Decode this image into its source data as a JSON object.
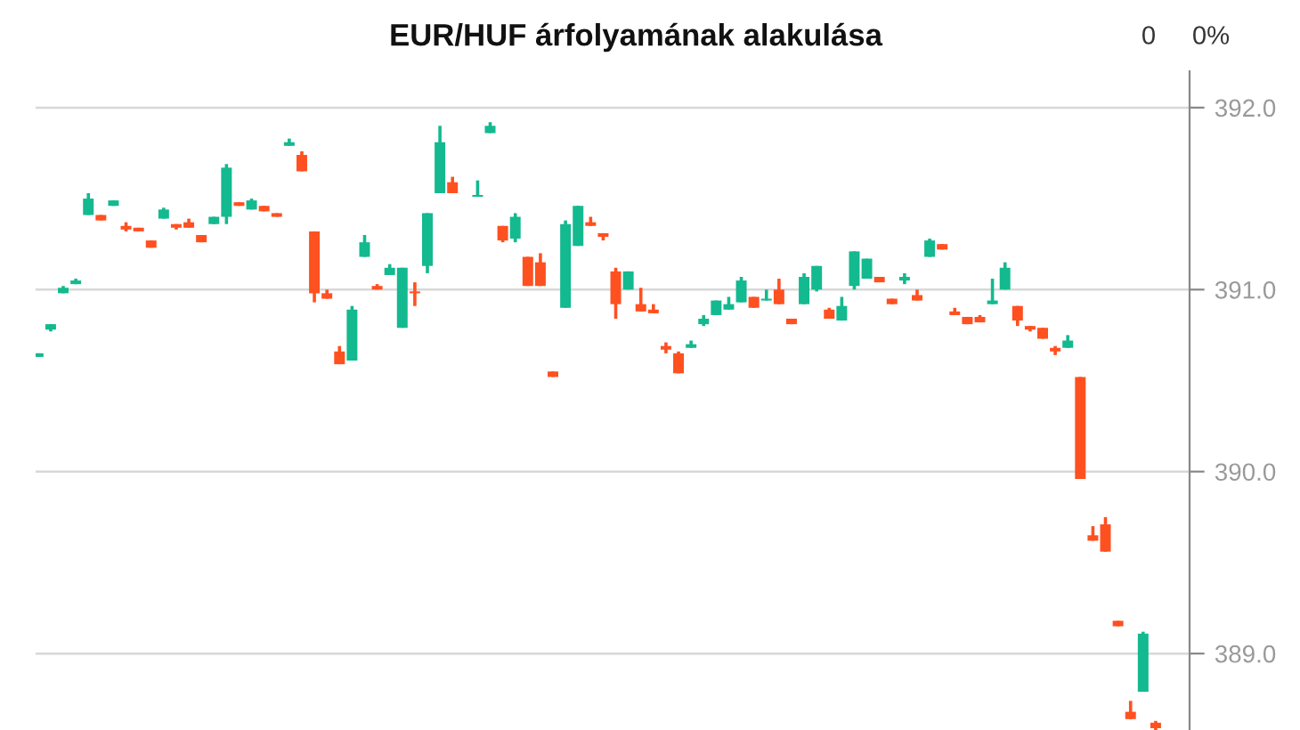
{
  "chart_data": {
    "type": "candlestick",
    "title": "EUR/HUF árfolyamának alakulása",
    "annotations": [
      "0",
      "0%"
    ],
    "categories": [
      null,
      null,
      null,
      null,
      null,
      null,
      null,
      null,
      null,
      null,
      null,
      null,
      null,
      null,
      null,
      null,
      null,
      null,
      null,
      null,
      null,
      null,
      null,
      null,
      null,
      null,
      null,
      null,
      null,
      null,
      null,
      null,
      null,
      null,
      null,
      null,
      null,
      null,
      null,
      null,
      null,
      null,
      null,
      null,
      null,
      null,
      null,
      null,
      null,
      null,
      null,
      null,
      null,
      null,
      null,
      null,
      null,
      null,
      null,
      null,
      null,
      null,
      null,
      null,
      null,
      null,
      null,
      null,
      null,
      null,
      null,
      null,
      null,
      null,
      null,
      null,
      null,
      null,
      null,
      null,
      null,
      null,
      null,
      null,
      null,
      null,
      null,
      null,
      null,
      null
    ],
    "ohlc": [
      [
        390.63,
        390.65,
        390.63,
        390.65
      ],
      [
        390.78,
        390.81,
        390.77,
        390.81
      ],
      [
        390.98,
        391.02,
        390.98,
        391.01
      ],
      [
        391.03,
        391.06,
        391.03,
        391.05
      ],
      [
        391.41,
        391.53,
        391.41,
        391.5
      ],
      [
        391.41,
        391.41,
        391.38,
        391.38
      ],
      [
        391.46,
        391.49,
        391.46,
        391.49
      ],
      [
        391.35,
        391.37,
        391.32,
        391.33
      ],
      [
        391.34,
        391.34,
        391.32,
        391.32
      ],
      [
        391.27,
        391.27,
        391.23,
        391.23
      ],
      [
        391.39,
        391.45,
        391.39,
        391.44
      ],
      [
        391.36,
        391.36,
        391.33,
        391.34
      ],
      [
        391.37,
        391.39,
        391.34,
        391.34
      ],
      [
        391.3,
        391.3,
        391.26,
        391.26
      ],
      [
        391.36,
        391.4,
        391.36,
        391.4
      ],
      [
        391.4,
        391.69,
        391.36,
        391.67
      ],
      [
        391.48,
        391.48,
        391.46,
        391.46
      ],
      [
        391.44,
        391.5,
        391.44,
        391.49
      ],
      [
        391.46,
        391.46,
        391.43,
        391.43
      ],
      [
        391.42,
        391.42,
        391.4,
        391.4
      ],
      [
        391.79,
        391.83,
        391.79,
        391.81
      ],
      [
        391.74,
        391.76,
        391.65,
        391.65
      ],
      [
        391.32,
        391.32,
        390.93,
        390.98
      ],
      [
        390.98,
        391.0,
        390.95,
        390.95
      ],
      [
        390.66,
        390.69,
        390.59,
        390.59
      ],
      [
        390.61,
        390.91,
        390.61,
        390.89
      ],
      [
        391.18,
        391.3,
        391.18,
        391.26
      ],
      [
        391.02,
        391.03,
        391.0,
        391.0
      ],
      [
        391.08,
        391.14,
        391.08,
        391.12
      ],
      [
        390.79,
        391.12,
        390.79,
        391.12
      ],
      [
        390.99,
        391.04,
        390.91,
        390.98
      ],
      [
        391.13,
        391.42,
        391.09,
        391.42
      ],
      [
        391.53,
        391.9,
        391.53,
        391.81
      ],
      [
        391.59,
        391.62,
        391.53,
        391.53
      ],
      null,
      [
        391.51,
        391.6,
        391.51,
        391.52
      ],
      [
        391.86,
        391.92,
        391.86,
        391.9
      ],
      [
        391.35,
        391.35,
        391.26,
        391.27
      ],
      [
        391.28,
        391.42,
        391.26,
        391.4
      ],
      [
        391.18,
        391.18,
        391.02,
        391.02
      ],
      [
        391.15,
        391.2,
        391.02,
        391.02
      ],
      [
        390.55,
        390.55,
        390.52,
        390.52
      ],
      [
        390.9,
        391.38,
        390.9,
        391.36
      ],
      [
        391.24,
        391.46,
        391.24,
        391.46
      ],
      [
        391.37,
        391.4,
        391.35,
        391.35
      ],
      [
        391.31,
        391.31,
        391.27,
        391.29
      ],
      [
        391.1,
        391.12,
        390.84,
        390.92
      ],
      [
        391.0,
        391.1,
        391.0,
        391.1
      ],
      [
        390.92,
        391.01,
        390.88,
        390.88
      ],
      [
        390.89,
        390.92,
        390.87,
        390.87
      ],
      [
        390.69,
        390.71,
        390.65,
        390.67
      ],
      [
        390.65,
        390.66,
        390.54,
        390.54
      ],
      [
        390.68,
        390.72,
        390.68,
        390.7
      ],
      [
        390.81,
        390.86,
        390.8,
        390.84
      ],
      [
        390.86,
        390.94,
        390.86,
        390.94
      ],
      [
        390.89,
        390.96,
        390.89,
        390.92
      ],
      [
        390.93,
        391.07,
        390.93,
        391.05
      ],
      [
        390.96,
        390.96,
        390.9,
        390.9
      ],
      [
        390.94,
        391.0,
        390.94,
        390.95
      ],
      [
        391.0,
        391.06,
        390.92,
        390.92
      ],
      [
        390.84,
        390.84,
        390.81,
        390.81
      ],
      [
        390.92,
        391.09,
        390.92,
        391.07
      ],
      [
        391.0,
        391.13,
        390.99,
        391.13
      ],
      [
        390.89,
        390.9,
        390.84,
        390.84
      ],
      [
        390.83,
        390.96,
        390.83,
        390.91
      ],
      [
        391.02,
        391.21,
        391.0,
        391.21
      ],
      [
        391.06,
        391.17,
        391.06,
        391.17
      ],
      [
        391.07,
        391.07,
        391.04,
        391.04
      ],
      [
        390.95,
        390.95,
        390.92,
        390.92
      ],
      [
        391.05,
        391.09,
        391.03,
        391.07
      ],
      [
        390.97,
        391.0,
        390.94,
        390.94
      ],
      [
        391.18,
        391.28,
        391.18,
        391.27
      ],
      [
        391.25,
        391.25,
        391.22,
        391.22
      ],
      [
        390.88,
        390.9,
        390.86,
        390.86
      ],
      [
        390.85,
        390.85,
        390.81,
        390.81
      ],
      [
        390.85,
        390.86,
        390.82,
        390.82
      ],
      [
        390.92,
        391.06,
        390.92,
        390.94
      ],
      [
        391.0,
        391.15,
        391.0,
        391.12
      ],
      [
        390.91,
        390.91,
        390.8,
        390.83
      ],
      [
        390.8,
        390.8,
        390.77,
        390.78
      ],
      [
        390.79,
        390.79,
        390.73,
        390.73
      ],
      [
        390.68,
        390.69,
        390.64,
        390.66
      ],
      [
        390.68,
        390.75,
        390.68,
        390.72
      ],
      [
        390.52,
        390.52,
        389.96,
        389.96
      ],
      [
        389.65,
        389.7,
        389.62,
        389.62
      ],
      [
        389.71,
        389.75,
        389.56,
        389.56
      ],
      [
        389.18,
        389.18,
        389.15,
        389.15
      ],
      [
        388.68,
        388.74,
        388.64,
        388.64
      ],
      [
        388.79,
        389.12,
        388.79,
        389.11
      ],
      [
        388.62,
        388.63,
        388.58,
        388.59
      ]
    ],
    "colors": [
      "#13b98f",
      "#13b98f",
      "#13b98f",
      "#13b98f",
      "#13b98f",
      "#ff5020",
      "#13b98f",
      "#ff5020",
      "#ff5020",
      "#ff5020",
      "#13b98f",
      "#ff5020",
      "#ff5020",
      "#ff5020",
      "#13b98f",
      "#13b98f",
      "#ff5020",
      "#13b98f",
      "#ff5020",
      "#ff5020",
      "#13b98f",
      "#ff5020",
      "#ff5020",
      "#ff5020",
      "#ff5020",
      "#13b98f",
      "#13b98f",
      "#ff5020",
      "#13b98f",
      "#13b98f",
      "#ff5020",
      "#13b98f",
      "#13b98f",
      "#ff5020",
      null,
      "#13b98f",
      "#13b98f",
      "#ff5020",
      "#13b98f",
      "#ff5020",
      "#ff5020",
      "#ff5020",
      "#13b98f",
      "#13b98f",
      "#ff5020",
      "#ff5020",
      "#ff5020",
      "#13b98f",
      "#ff5020",
      "#ff5020",
      "#ff5020",
      "#ff5020",
      "#13b98f",
      "#13b98f",
      "#13b98f",
      "#13b98f",
      "#13b98f",
      "#ff5020",
      "#13b98f",
      "#ff5020",
      "#ff5020",
      "#13b98f",
      "#13b98f",
      "#ff5020",
      "#13b98f",
      "#13b98f",
      "#13b98f",
      "#ff5020",
      "#ff5020",
      "#13b98f",
      "#ff5020",
      "#13b98f",
      "#ff5020",
      "#ff5020",
      "#ff5020",
      "#ff5020",
      "#13b98f",
      "#13b98f",
      "#ff5020",
      "#ff5020",
      "#ff5020",
      "#ff5020",
      "#13b98f",
      "#ff5020",
      "#ff5020",
      "#ff5020",
      "#ff5020",
      "#ff5020",
      "#13b98f",
      "#ff5020"
    ],
    "ylim": [
      388.58,
      392.2
    ],
    "yticks": [
      {
        "value": 389,
        "label": "389.0"
      },
      {
        "value": 390,
        "label": "390.0"
      },
      {
        "value": 391,
        "label": "391.0"
      },
      {
        "value": 392,
        "label": "392.0"
      }
    ],
    "grid": "y",
    "tick_labels": "y"
  }
}
